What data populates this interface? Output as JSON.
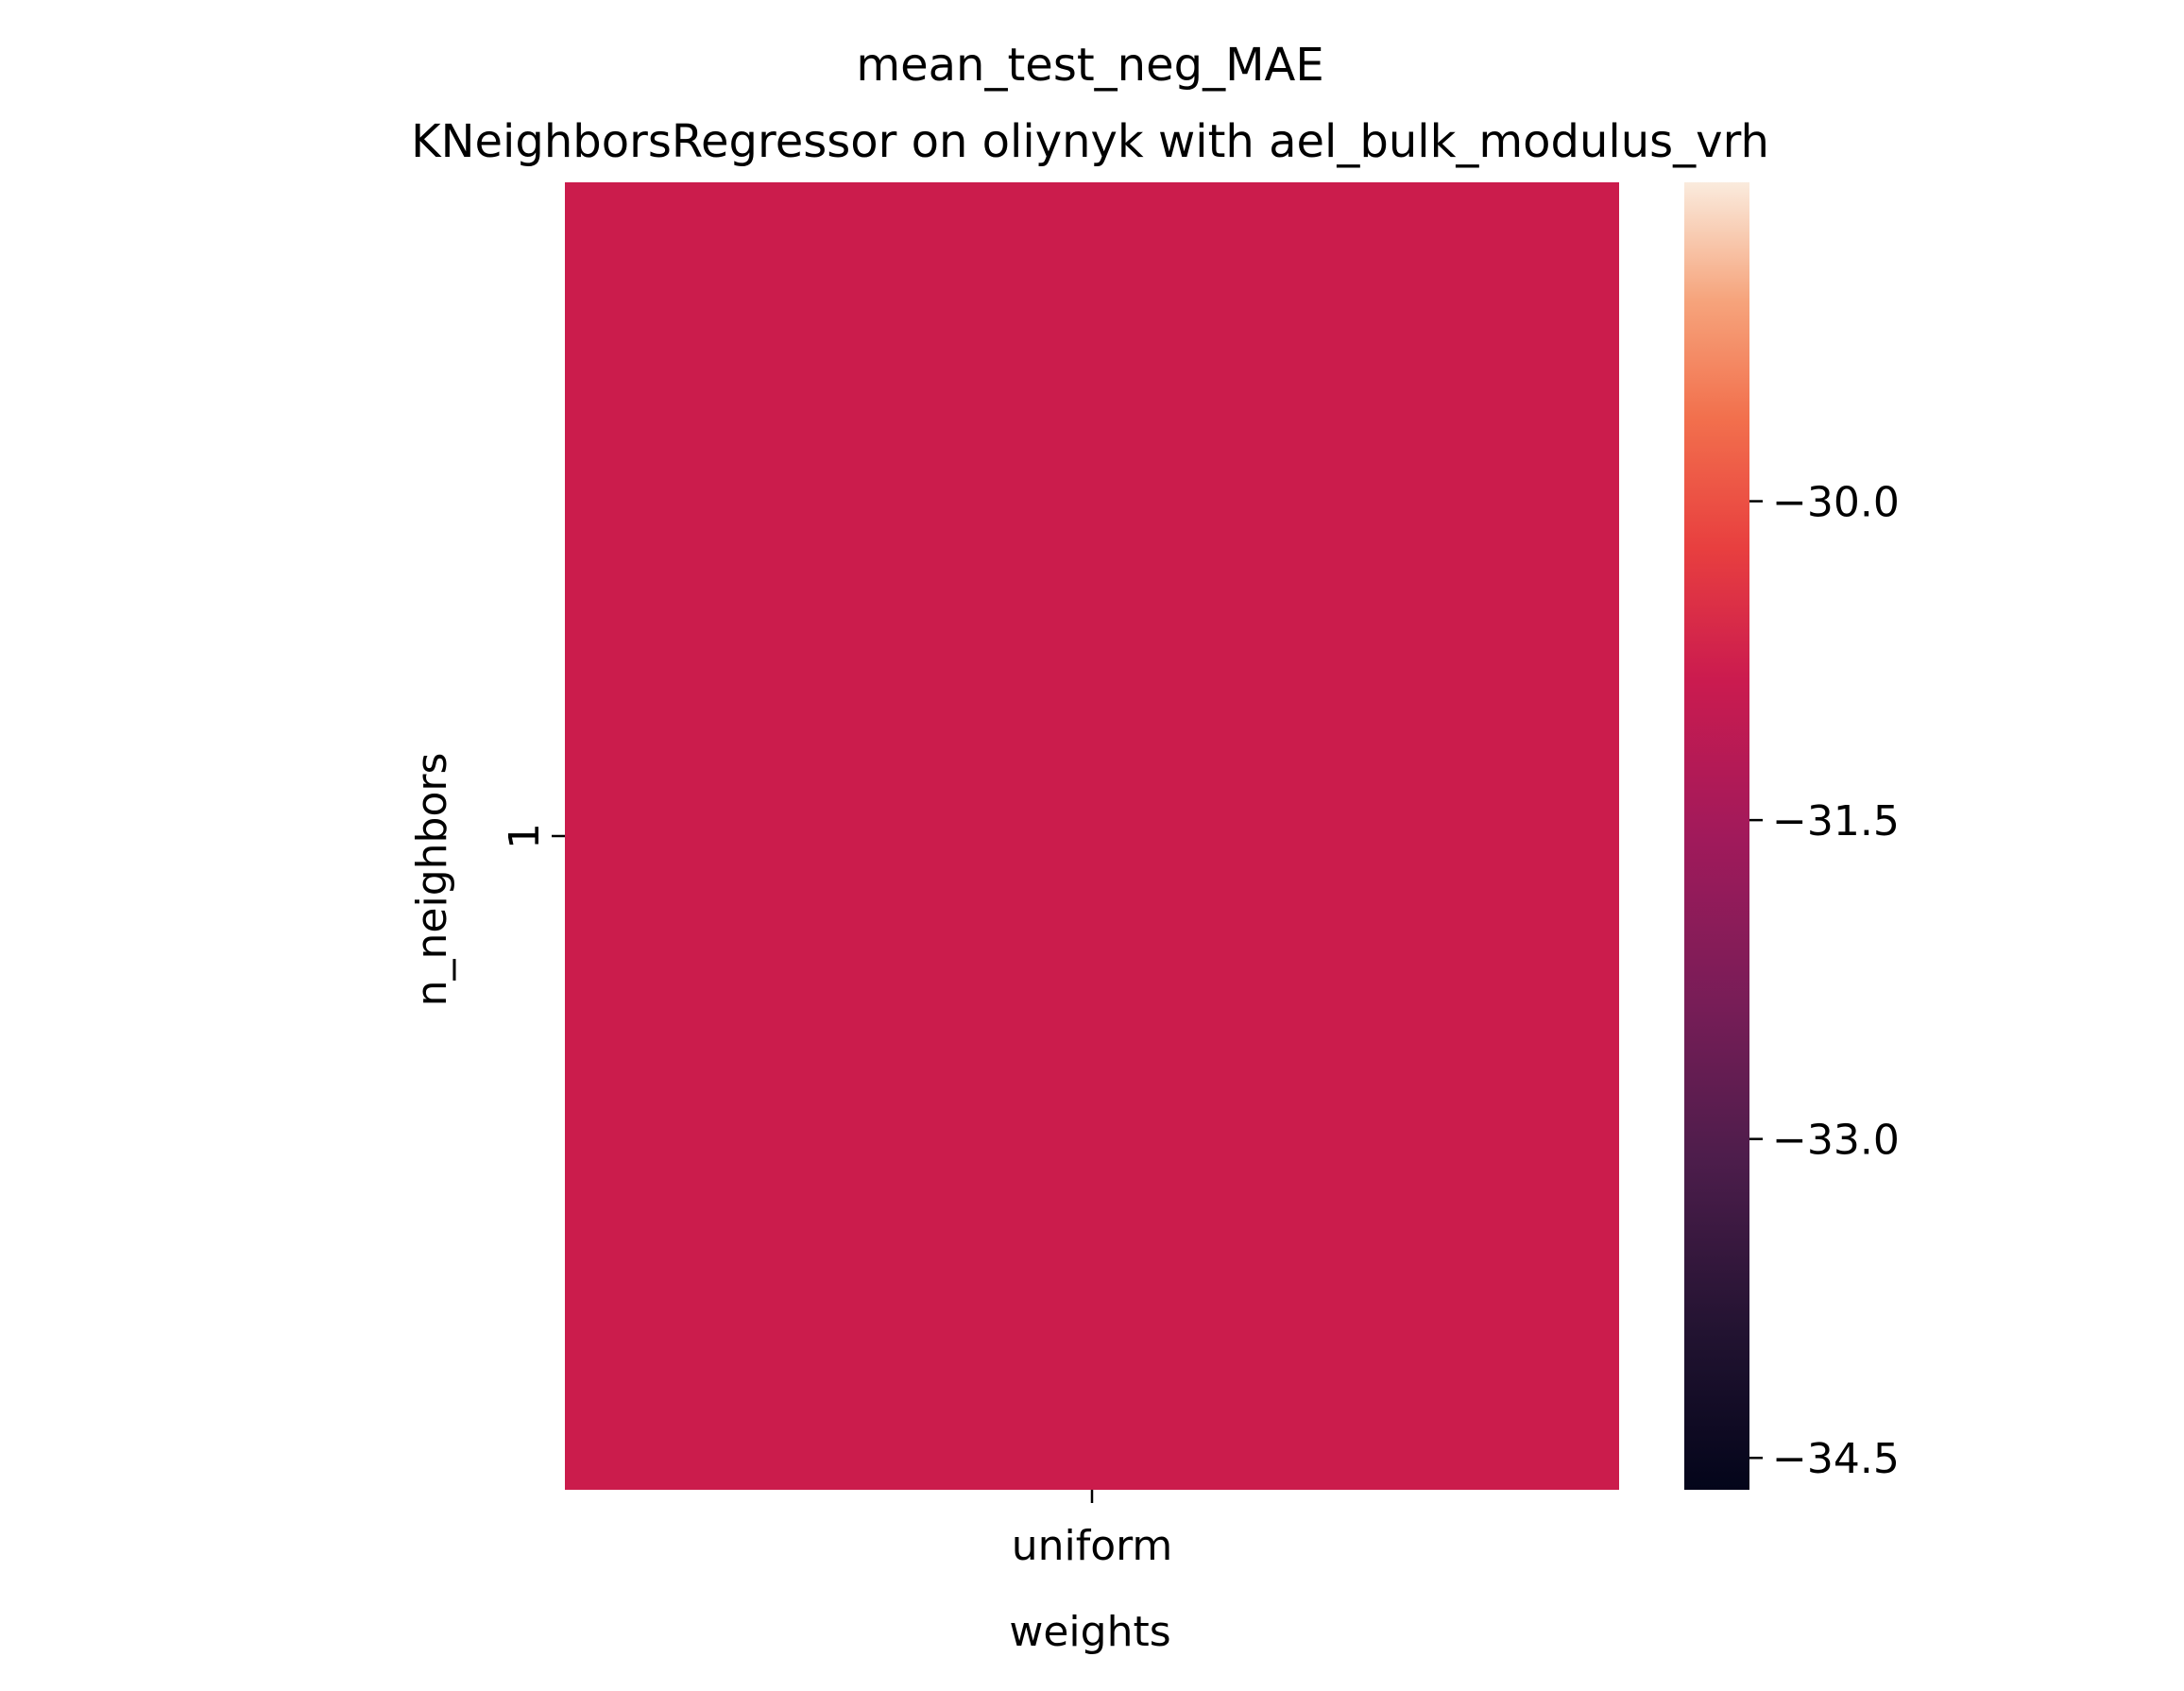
{
  "chart_data": {
    "type": "heatmap",
    "title_lines": [
      "mean_test_neg_MAE",
      "KNeighborsRegressor on oliynyk with ael_bulk_modulus_vrh"
    ],
    "xlabel": "weights",
    "ylabel": "n_neighbors",
    "x_categories": [
      "uniform"
    ],
    "y_categories": [
      "1"
    ],
    "values": [
      [
        -31.75
      ]
    ],
    "colorbar": {
      "colormap": "rocket",
      "range": [
        -34.65,
        -28.5
      ],
      "ticks": [
        -30.0,
        -31.5,
        -33.0,
        -34.5
      ],
      "tick_labels": [
        "−30.0",
        "−31.5",
        "−33.0",
        "−34.5"
      ]
    }
  },
  "colors": {
    "cell": "#cb1c4c",
    "background": "#ffffff",
    "text": "#000000"
  }
}
